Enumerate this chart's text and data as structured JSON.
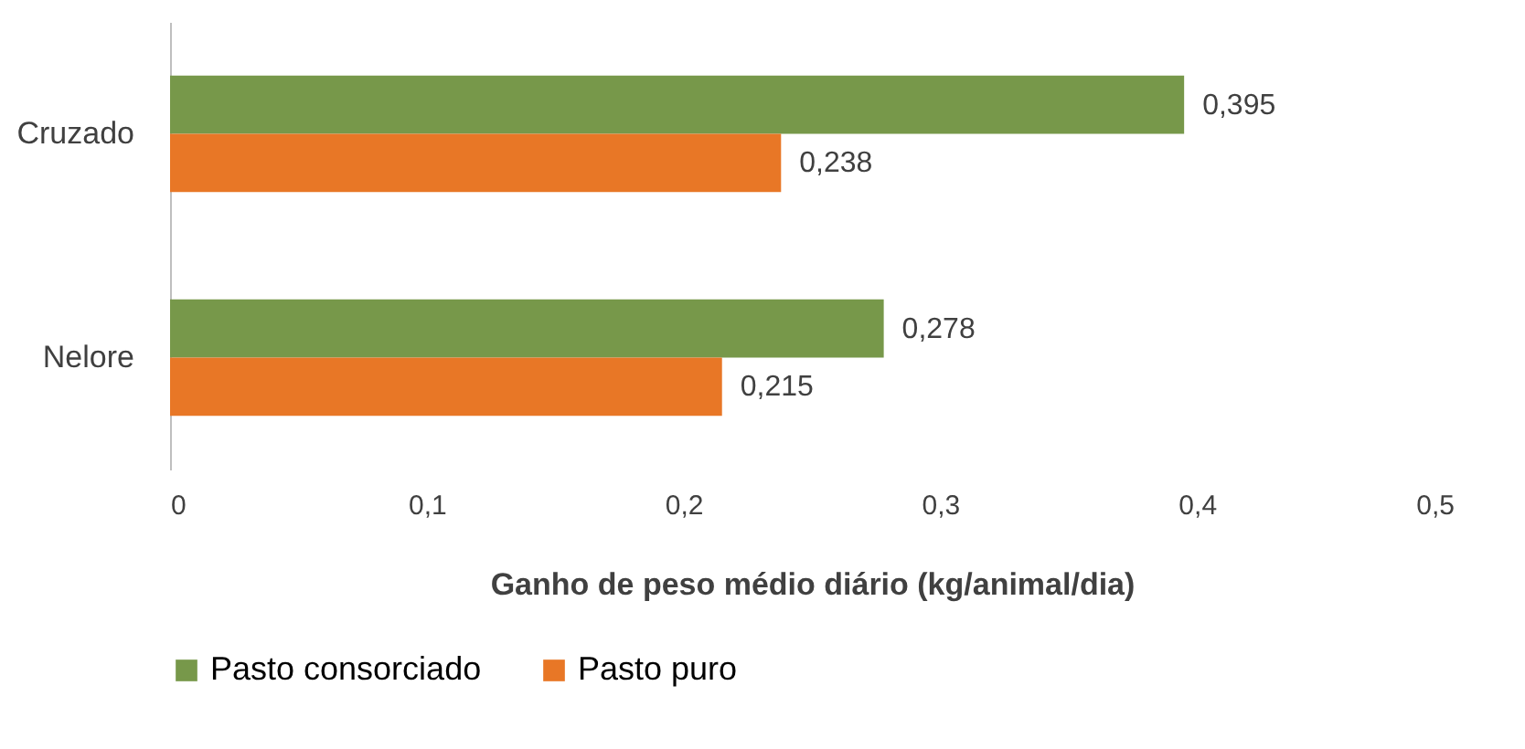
{
  "chart_data": {
    "type": "bar",
    "orientation": "horizontal",
    "xlabel": "Ganho de peso médio diário (kg/animal/dia)",
    "categories": [
      "Cruzado",
      "Nelore"
    ],
    "series": [
      {
        "name": "Pasto consorciado",
        "color": "#77984a",
        "values": [
          0.395,
          0.278
        ],
        "value_labels": [
          "0,395",
          "0,278"
        ]
      },
      {
        "name": "Pasto puro",
        "color": "#e87726",
        "values": [
          0.238,
          0.215
        ],
        "value_labels": [
          "0,238",
          "0,215"
        ]
      }
    ],
    "xlim": [
      0,
      0.5
    ],
    "xticks": [
      0,
      {
        "value": 0.1,
        "label": "0,1"
      },
      {
        "value": 0.2,
        "label": "0,2"
      },
      {
        "value": 0.3,
        "label": "0,3"
      },
      {
        "value": 0.4,
        "label": "0,4"
      },
      {
        "value": 0.5,
        "label": "0,5"
      }
    ],
    "grid": false,
    "legend": "bottom"
  }
}
